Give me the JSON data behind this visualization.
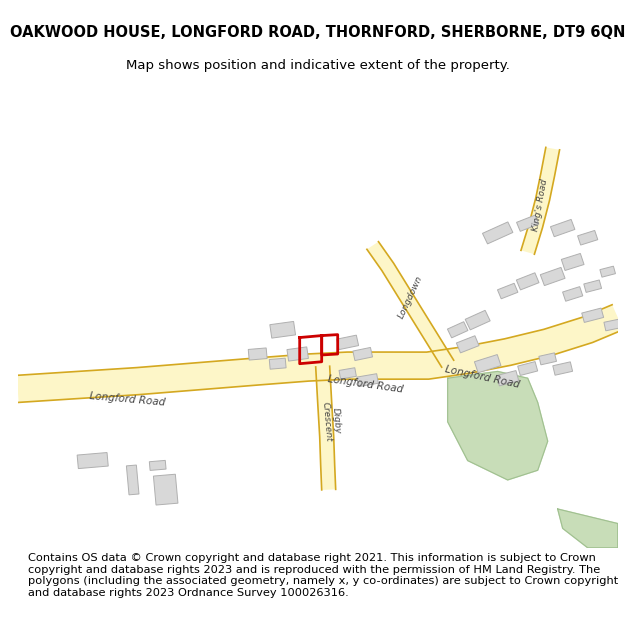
{
  "title_line1": "OAKWOOD HOUSE, LONGFORD ROAD, THORNFORD, SHERBORNE, DT9 6QN",
  "title_line2": "Map shows position and indicative extent of the property.",
  "footer_text": "Contains OS data © Crown copyright and database right 2021. This information is subject to Crown copyright and database rights 2023 and is reproduced with the permission of HM Land Registry. The polygons (including the associated geometry, namely x, y co-ordinates) are subject to Crown copyright and database rights 2023 Ordnance Survey 100026316.",
  "bg_color": "#ffffff",
  "map_bg": "#f8f8f8",
  "road_fill": "#fdf6c8",
  "road_edge": "#d4a820",
  "building_fill": "#d8d8d8",
  "building_edge": "#b0b0b0",
  "green_fill": "#c8ddb8",
  "green_edge": "#a0c090",
  "plot_edge": "#cc0000",
  "label_color": "#444444",
  "title_fontsize": 10.5,
  "subtitle_fontsize": 9.5,
  "footer_fontsize": 8.2,
  "road_label_size": 7.5,
  "title_bold": true
}
